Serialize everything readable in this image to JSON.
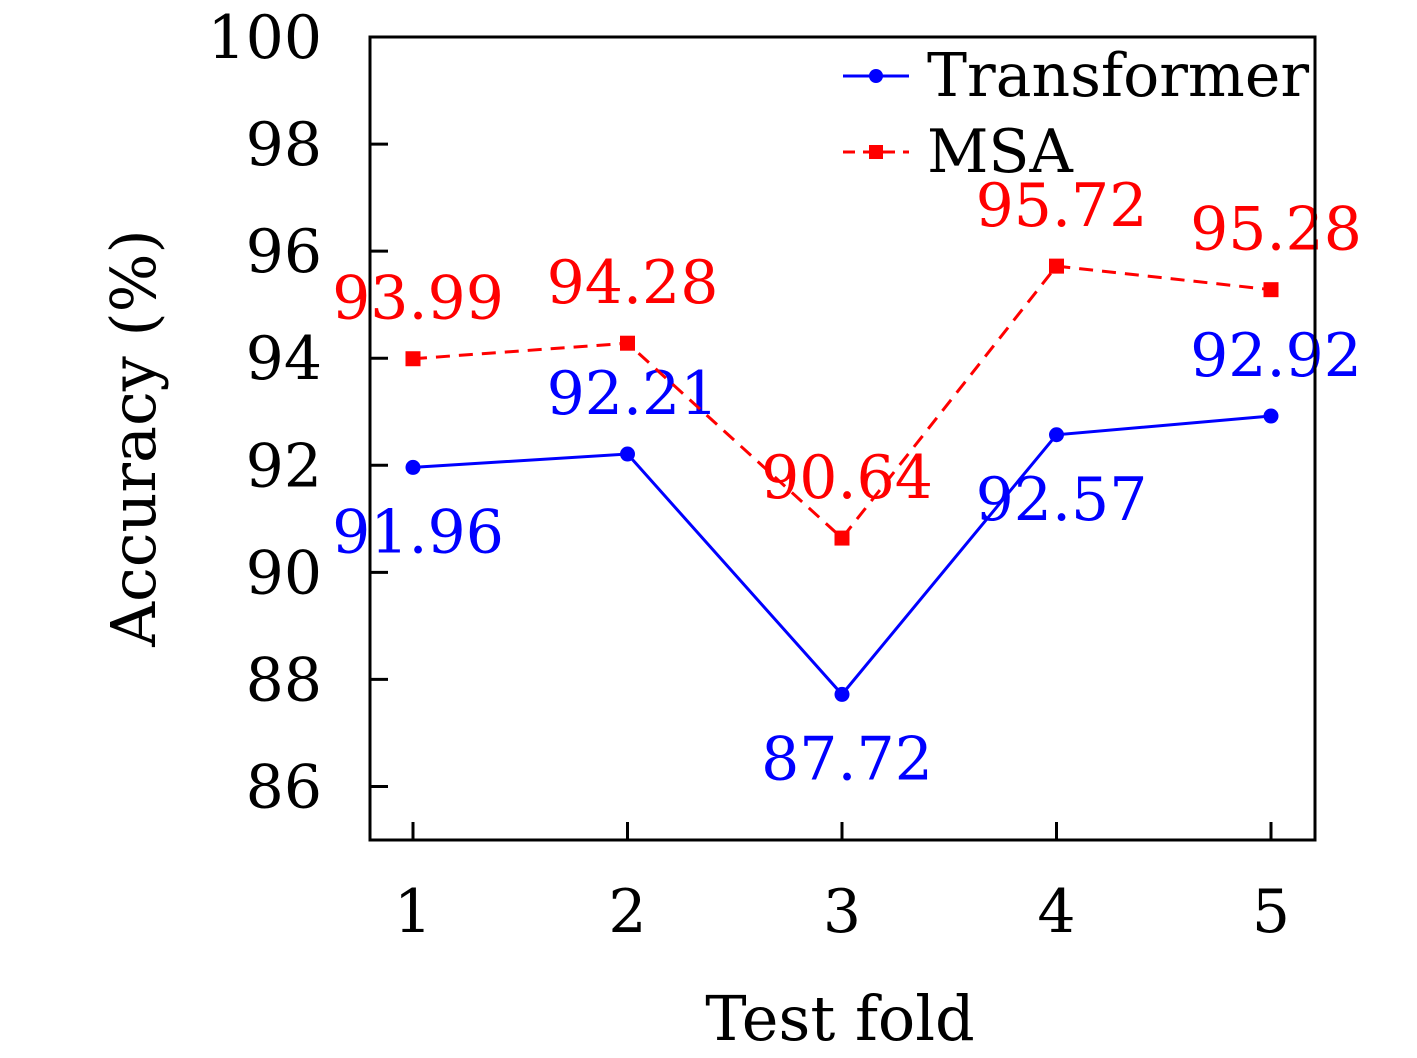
{
  "chart_data": {
    "type": "line",
    "title": "",
    "xlabel": "Test fold",
    "ylabel": "Accuracy (%)",
    "x": [
      1,
      2,
      3,
      4,
      5
    ],
    "x_tick_labels": [
      "1",
      "2",
      "3",
      "4",
      "5"
    ],
    "ylim": [
      85,
      100
    ],
    "y_ticks": [
      86,
      88,
      90,
      92,
      94,
      96,
      98,
      100
    ],
    "y_tick_labels": [
      "86",
      "88",
      "90",
      "92",
      "94",
      "96",
      "98",
      "100"
    ],
    "grid": false,
    "legend_position": "top-right",
    "series": [
      {
        "name": "Transformer",
        "color": "#0000ff",
        "line_style": "solid",
        "marker": "circle",
        "values": [
          91.96,
          92.21,
          87.72,
          92.57,
          92.92
        ],
        "labels": [
          "91.96",
          "92.21",
          "87.72",
          "92.57",
          "92.92"
        ],
        "label_positions": [
          "below",
          "above",
          "below",
          "below",
          "above"
        ]
      },
      {
        "name": "MSA",
        "color": "#ff0000",
        "line_style": "dashed",
        "marker": "square",
        "values": [
          93.99,
          94.28,
          90.64,
          95.72,
          95.28
        ],
        "labels": [
          "93.99",
          "94.28",
          "90.64",
          "95.72",
          "95.28"
        ],
        "label_positions": [
          "above",
          "above",
          "above",
          "above",
          "above"
        ]
      }
    ]
  }
}
